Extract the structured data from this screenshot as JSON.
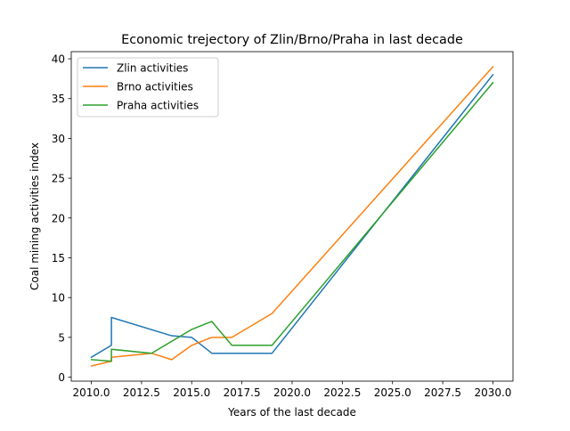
{
  "chart_data": {
    "type": "line",
    "title": "Economic trejectory of Zlin/Brno/Praha in last decade",
    "xlabel": "Years of the last decade",
    "ylabel": "Coal mining activities index",
    "xlim": [
      2009.0,
      2031.0
    ],
    "ylim": [
      -0.5,
      40.9
    ],
    "xticks": [
      "2010.0",
      "2012.5",
      "2015.0",
      "2017.5",
      "2020.0",
      "2022.5",
      "2025.0",
      "2027.5",
      "2030.0"
    ],
    "yticks": [
      "0",
      "5",
      "10",
      "15",
      "20",
      "25",
      "30",
      "35",
      "40"
    ],
    "grid": false,
    "legend_position": "upper-left",
    "series": [
      {
        "name": "Zlin activities",
        "color": "#1f77b4",
        "x": [
          2010,
          2011,
          2011,
          2014,
          2015,
          2016,
          2017,
          2019,
          2030
        ],
        "y": [
          2.5,
          4.0,
          7.5,
          5.2,
          5.0,
          3.0,
          3.0,
          3.0,
          38.0
        ]
      },
      {
        "name": "Brno activities",
        "color": "#ff7f0e",
        "x": [
          2010,
          2011,
          2011,
          2013,
          2014,
          2015,
          2016,
          2017,
          2019,
          2030
        ],
        "y": [
          1.4,
          2.0,
          2.5,
          3.0,
          2.2,
          4.0,
          5.0,
          5.0,
          8.0,
          39.0
        ]
      },
      {
        "name": "Praha activities",
        "color": "#2ca02c",
        "x": [
          2010,
          2011,
          2011,
          2013,
          2015,
          2016,
          2017,
          2019,
          2030
        ],
        "y": [
          2.2,
          2.0,
          3.5,
          3.0,
          6.0,
          7.0,
          4.0,
          4.0,
          37.0
        ]
      }
    ]
  }
}
